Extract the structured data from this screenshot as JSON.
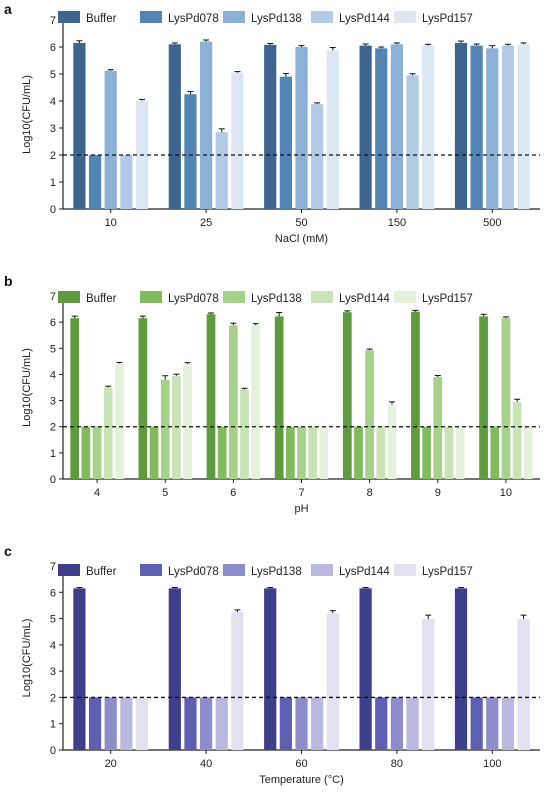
{
  "chart_data": [
    {
      "type": "bar",
      "panel": "a",
      "xlabel": "NaCl (mM)",
      "ylabel": "Log10(CFU/mL)",
      "ylim": [
        0,
        7
      ],
      "yticks": [
        0,
        1,
        2,
        3,
        4,
        5,
        6,
        7
      ],
      "categories": [
        "10",
        "25",
        "50",
        "150",
        "500"
      ],
      "threshold": 2,
      "legend": "top",
      "colors": [
        "#3d6590",
        "#5284b6",
        "#8cb0d6",
        "#b2cae3",
        "#dce7f3"
      ],
      "series": [
        {
          "name": "Buffer",
          "values": [
            6.15,
            6.1,
            6.08,
            6.05,
            6.15
          ],
          "errors": [
            0.08,
            0.05,
            0.05,
            0.06,
            0.07
          ]
        },
        {
          "name": "LysPd078",
          "values": [
            2.0,
            4.25,
            4.9,
            5.95,
            6.05
          ],
          "errors": [
            0,
            0.1,
            0.12,
            0.05,
            0.06
          ]
        },
        {
          "name": "LysPd138",
          "values": [
            5.12,
            6.2,
            6.0,
            6.1,
            5.95
          ],
          "errors": [
            0.04,
            0.06,
            0.05,
            0.05,
            0.1
          ]
        },
        {
          "name": "LysPd144",
          "values": [
            2.0,
            2.85,
            3.88,
            4.95,
            6.05
          ],
          "errors": [
            0,
            0.12,
            0.05,
            0.06,
            0.05
          ]
        },
        {
          "name": "LysPd157",
          "values": [
            4.02,
            5.05,
            5.88,
            6.05,
            6.1
          ],
          "errors": [
            0.04,
            0.04,
            0.1,
            0.05,
            0.05
          ]
        }
      ]
    },
    {
      "type": "bar",
      "panel": "b",
      "xlabel": "pH",
      "ylabel": "Log10(CFU/mL)",
      "ylim": [
        0,
        7
      ],
      "yticks": [
        0,
        1,
        2,
        3,
        4,
        5,
        6,
        7
      ],
      "categories": [
        "4",
        "5",
        "6",
        "7",
        "8",
        "9",
        "10"
      ],
      "threshold": 2,
      "legend": "top",
      "colors": [
        "#5e9a3e",
        "#82bb5d",
        "#a7d18b",
        "#c8e3b4",
        "#e5f1dc"
      ],
      "series": [
        {
          "name": "Buffer",
          "values": [
            6.15,
            6.15,
            6.3,
            6.22,
            6.38,
            6.4,
            6.22
          ],
          "errors": [
            0.08,
            0.08,
            0.05,
            0.15,
            0.05,
            0.05,
            0.08
          ]
        },
        {
          "name": "LysPd078",
          "values": [
            2.0,
            2.0,
            2.0,
            2.0,
            2.0,
            2.0,
            2.0
          ],
          "errors": [
            0,
            0,
            0,
            0,
            0,
            0,
            0
          ]
        },
        {
          "name": "LysPd138",
          "values": [
            2.0,
            3.8,
            5.88,
            2.0,
            4.92,
            3.9,
            6.15
          ],
          "errors": [
            0,
            0.15,
            0.08,
            0,
            0.05,
            0.06,
            0.05
          ]
        },
        {
          "name": "LysPd144",
          "values": [
            3.5,
            3.95,
            3.42,
            2.0,
            2.0,
            2.0,
            2.95
          ],
          "errors": [
            0.05,
            0.06,
            0.05,
            0,
            0,
            0,
            0.1
          ]
        },
        {
          "name": "LysPd157",
          "values": [
            4.42,
            4.4,
            5.88,
            2.0,
            2.85,
            2.0,
            2.0
          ],
          "errors": [
            0.04,
            0.05,
            0.06,
            0,
            0.1,
            0,
            0
          ]
        }
      ]
    },
    {
      "type": "bar",
      "panel": "c",
      "xlabel": "Temperature (°C)",
      "ylabel": "Log10(CFU/mL)",
      "ylim": [
        0,
        7
      ],
      "yticks": [
        0,
        1,
        2,
        3,
        4,
        5,
        6,
        7
      ],
      "categories": [
        "20",
        "40",
        "60",
        "80",
        "100"
      ],
      "threshold": 2,
      "legend": "top",
      "colors": [
        "#3e3f8a",
        "#5e5fb3",
        "#8d8dcc",
        "#b9b8df",
        "#e1e1f0"
      ],
      "series": [
        {
          "name": "Buffer",
          "values": [
            6.15,
            6.15,
            6.15,
            6.15,
            6.15
          ],
          "errors": [
            0.03,
            0.03,
            0.03,
            0.03,
            0.03
          ]
        },
        {
          "name": "LysPd078",
          "values": [
            2.0,
            2.0,
            2.0,
            2.0,
            2.0
          ],
          "errors": [
            0,
            0,
            0,
            0,
            0
          ]
        },
        {
          "name": "LysPd138",
          "values": [
            2.0,
            2.0,
            2.0,
            2.0,
            2.0
          ],
          "errors": [
            0,
            0,
            0,
            0,
            0
          ]
        },
        {
          "name": "LysPd144",
          "values": [
            2.0,
            2.0,
            2.0,
            2.0,
            2.0
          ],
          "errors": [
            0,
            0,
            0,
            0,
            0
          ]
        },
        {
          "name": "LysPd157",
          "values": [
            2.0,
            5.25,
            5.2,
            4.98,
            4.98
          ],
          "errors": [
            0,
            0.08,
            0.1,
            0.15,
            0.15
          ]
        }
      ]
    }
  ]
}
